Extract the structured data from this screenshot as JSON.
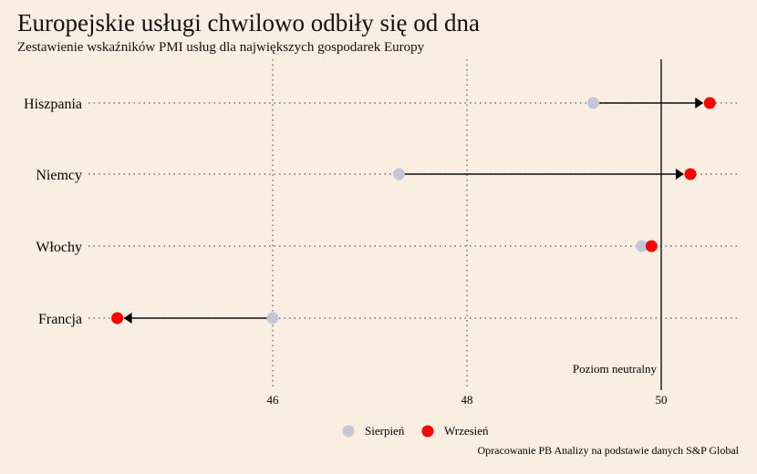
{
  "chart_data": {
    "type": "dumbbell",
    "title": "Europejskie usługi chwilowo odbiły się od dna",
    "subtitle": "Zestawienie wskaźników PMI usług dla największych gospodarek Europy",
    "categories": [
      "Hiszpania",
      "Niemcy",
      "Włochy",
      "Francja"
    ],
    "series": [
      {
        "name": "Sierpień",
        "color": "#c0c8d8",
        "values": [
          49.3,
          47.3,
          49.8,
          46.0
        ]
      },
      {
        "name": "Wrzesień",
        "color": "#ff0000",
        "values": [
          50.5,
          50.3,
          49.9,
          44.4
        ]
      }
    ],
    "xticks": [
      46,
      48,
      50
    ],
    "xlim": [
      44.08,
      50.8
    ],
    "reference_line": {
      "value": 50,
      "label": "Poziom neutralny"
    },
    "legend": "bottom",
    "source": "Opracowanie PB Analizy na podstawie danych S&P Global"
  }
}
